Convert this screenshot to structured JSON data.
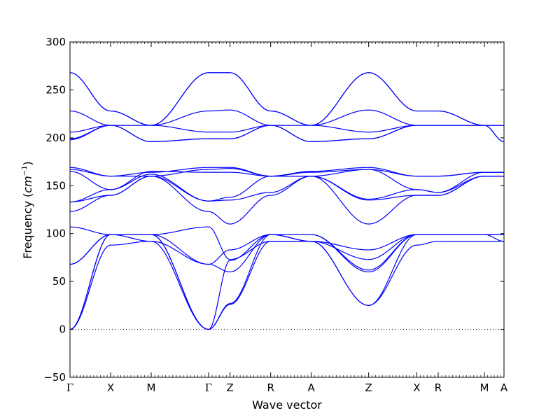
{
  "chart_data": {
    "type": "line",
    "title": "",
    "xlabel": "Wave vector",
    "ylabel_text": "Frequency (",
    "ylabel_unit_base": "cm",
    "ylabel_unit_exp": "−1",
    "ylabel_close": ")",
    "ylim": [
      -50,
      300
    ],
    "y_ticks": [
      -50,
      0,
      50,
      100,
      150,
      200,
      250,
      300
    ],
    "y_tick_labels": [
      "−50",
      "0",
      "50",
      "100",
      "150",
      "200",
      "250",
      "300"
    ],
    "xlim": [
      0,
      9.3
    ],
    "k_points": [
      {
        "label": "Γ",
        "x": 0
      },
      {
        "label": "X",
        "x": 0.87
      },
      {
        "label": "M",
        "x": 1.74
      },
      {
        "label": "Γ",
        "x": 2.97
      },
      {
        "label": "Z",
        "x": 3.43
      },
      {
        "label": "R",
        "x": 4.3
      },
      {
        "label": "A",
        "x": 5.17
      },
      {
        "label": "Z",
        "x": 6.4
      },
      {
        "label": "X",
        "x": 7.43
      },
      {
        "label": "R",
        "x": 7.89
      },
      {
        "label": "M",
        "x": 8.88
      },
      {
        "label": "A",
        "x": 9.3
      }
    ],
    "zero_line": true,
    "line_color": "#0000ff",
    "series": [
      {
        "x": [
          0,
          0.87,
          1.74,
          2.97,
          3.43,
          4.3,
          5.17,
          6.4,
          7.43,
          7.89,
          8.88,
          9.3
        ],
        "y": [
          0,
          88,
          92,
          0,
          26,
          92,
          92,
          25,
          88,
          92,
          92,
          92
        ]
      },
      {
        "x": [
          0,
          0.87,
          1.74,
          2.97,
          3.43,
          4.3,
          5.17,
          6.4,
          7.43,
          7.89,
          8.88,
          9.3
        ],
        "y": [
          0,
          99,
          99,
          0,
          27,
          99,
          92,
          25,
          99,
          99,
          99,
          92
        ]
      },
      {
        "x": [
          0,
          0.87,
          1.74,
          2.97,
          3.43,
          4.3,
          5.17,
          6.4,
          7.43,
          7.89,
          8.88,
          9.3
        ],
        "y": [
          0,
          99,
          99,
          0,
          72,
          99,
          99,
          60,
          99,
          99,
          99,
          99
        ]
      },
      {
        "x": [
          0,
          0.87,
          1.74,
          2.97,
          3.43,
          4.3,
          5.17,
          6.4,
          7.43,
          7.89,
          8.88,
          9.3
        ],
        "y": [
          68,
          99,
          99,
          68,
          60,
          99,
          99,
          62,
          99,
          99,
          99,
          99
        ]
      },
      {
        "x": [
          0,
          0.87,
          1.74,
          2.97,
          3.43,
          4.3,
          5.17,
          6.4,
          7.43,
          7.89,
          8.88,
          9.3
        ],
        "y": [
          68,
          99,
          92,
          68,
          83,
          99,
          92,
          73,
          99,
          99,
          99,
          99
        ]
      },
      {
        "x": [
          0,
          0.87,
          1.74,
          2.97,
          3.43,
          4.3,
          5.17,
          6.4,
          7.43,
          7.89,
          8.88,
          9.3
        ],
        "y": [
          107,
          99,
          99,
          107,
          73,
          92,
          92,
          83,
          99,
          99,
          99,
          99
        ]
      },
      {
        "x": [
          0,
          0.87,
          1.74,
          2.97,
          3.43,
          4.3,
          5.17,
          6.4,
          7.43,
          7.89,
          8.88,
          9.3
        ],
        "y": [
          123,
          140,
          160,
          123,
          110,
          140,
          160,
          110,
          140,
          140,
          160,
          160
        ]
      },
      {
        "x": [
          0,
          0.87,
          1.74,
          2.97,
          3.43,
          4.3,
          5.17,
          6.4,
          7.43,
          7.89,
          8.88,
          9.3
        ],
        "y": [
          133,
          140,
          160,
          134,
          135,
          143,
          160,
          135,
          140,
          140,
          160,
          160
        ]
      },
      {
        "x": [
          0,
          0.87,
          1.74,
          2.97,
          3.43,
          4.3,
          5.17,
          6.4,
          7.43,
          7.89,
          8.88,
          9.3
        ],
        "y": [
          133,
          146,
          162,
          134,
          138,
          160,
          160,
          136,
          146,
          143,
          160,
          160
        ]
      },
      {
        "x": [
          0,
          0.87,
          1.74,
          2.97,
          3.43,
          4.3,
          5.17,
          6.4,
          7.43,
          7.89,
          8.88,
          9.3
        ],
        "y": [
          165,
          146,
          165,
          164,
          164,
          160,
          164,
          167,
          146,
          143,
          164,
          164
        ]
      },
      {
        "x": [
          0,
          0.87,
          1.74,
          2.97,
          3.43,
          4.3,
          5.17,
          6.4,
          7.43,
          7.89,
          8.88,
          9.3
        ],
        "y": [
          167,
          160,
          160,
          167,
          168,
          160,
          160,
          167,
          160,
          160,
          164,
          164
        ]
      },
      {
        "x": [
          0,
          0.87,
          1.74,
          2.97,
          3.43,
          4.3,
          5.17,
          6.4,
          7.43,
          7.89,
          8.88,
          9.3
        ],
        "y": [
          169,
          160,
          164,
          169,
          169,
          160,
          165,
          169,
          160,
          160,
          164,
          164
        ]
      },
      {
        "x": [
          0,
          0.87,
          1.74,
          2.97,
          3.43,
          4.3,
          5.17,
          6.4,
          7.43,
          7.89,
          8.88,
          9.3
        ],
        "y": [
          198,
          213,
          196,
          199,
          199,
          213,
          196,
          199,
          213,
          213,
          213,
          196
        ]
      },
      {
        "x": [
          0,
          0.87,
          1.74,
          2.97,
          3.43,
          4.3,
          5.17,
          6.4,
          7.43,
          7.89,
          8.88,
          9.3
        ],
        "y": [
          199,
          213,
          196,
          199,
          199,
          213,
          196,
          199,
          213,
          213,
          213,
          196
        ]
      },
      {
        "x": [
          0,
          0.87,
          1.74,
          2.97,
          3.43,
          4.3,
          5.17,
          6.4,
          7.43,
          7.89,
          8.88,
          9.3
        ],
        "y": [
          206,
          213,
          213,
          206,
          206,
          213,
          213,
          206,
          213,
          213,
          213,
          213
        ]
      },
      {
        "x": [
          0,
          0.87,
          1.74,
          2.97,
          3.43,
          4.3,
          5.17,
          6.4,
          7.43,
          7.89,
          8.88,
          9.3
        ],
        "y": [
          228,
          213,
          213,
          228,
          229,
          213,
          213,
          229,
          213,
          213,
          213,
          213
        ]
      },
      {
        "x": [
          0,
          0.87,
          1.74,
          2.97,
          3.43,
          4.3,
          5.17,
          6.4,
          7.43,
          7.89,
          8.88,
          9.3
        ],
        "y": [
          268,
          228,
          213,
          268,
          268,
          228,
          213,
          268,
          228,
          228,
          213,
          213
        ]
      },
      {
        "x": [
          0,
          0.87,
          1.74,
          2.97,
          3.43,
          4.3,
          5.17,
          6.4,
          7.43,
          7.89,
          8.88,
          9.3
        ],
        "y": [
          268,
          228,
          213,
          268,
          268,
          228,
          213,
          268,
          228,
          228,
          213,
          213
        ]
      }
    ]
  }
}
